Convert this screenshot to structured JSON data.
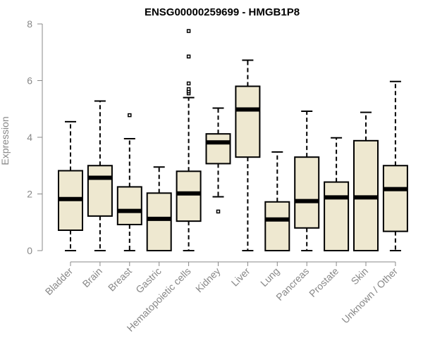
{
  "chart_data": {
    "type": "boxplot",
    "title": "ENSG00000259699 - HMGB1P8",
    "ylabel": "Expression",
    "xlabel": "",
    "ylim": [
      0,
      8
    ],
    "yticks": [
      0,
      2,
      4,
      6,
      8
    ],
    "box_fill": "#EEE8D0",
    "categories": [
      "Bladder",
      "Brain",
      "Breast",
      "Gastric",
      "Hematopoietic cells",
      "Kidney",
      "Liver",
      "Lung",
      "Pancreas",
      "Prostate",
      "Skin",
      "Unknown / Other"
    ],
    "boxes": [
      {
        "label": "Bladder",
        "min": 0,
        "q1": 0.72,
        "median": 1.82,
        "q3": 2.82,
        "max": 4.55,
        "outliers": []
      },
      {
        "label": "Brain",
        "min": 0,
        "q1": 1.22,
        "median": 2.57,
        "q3": 3.0,
        "max": 5.28,
        "outliers": []
      },
      {
        "label": "Breast",
        "min": 0,
        "q1": 0.92,
        "median": 1.4,
        "q3": 2.25,
        "max": 3.95,
        "outliers": [
          4.78
        ]
      },
      {
        "label": "Gastric",
        "min": 0,
        "q1": 0.0,
        "median": 1.12,
        "q3": 2.03,
        "max": 2.95,
        "outliers": []
      },
      {
        "label": "Hematopoietic cells",
        "min": 0,
        "q1": 1.04,
        "median": 2.02,
        "q3": 2.8,
        "max": 5.4,
        "outliers": [
          5.55,
          5.62,
          5.7,
          5.9,
          6.85,
          7.75
        ]
      },
      {
        "label": "Kidney",
        "min": 1.9,
        "q1": 3.07,
        "median": 3.82,
        "q3": 4.12,
        "max": 5.03,
        "outliers": [
          1.38
        ]
      },
      {
        "label": "Liver",
        "min": 0,
        "q1": 3.3,
        "median": 4.98,
        "q3": 5.8,
        "max": 6.72,
        "outliers": []
      },
      {
        "label": "Lung",
        "min": 0,
        "q1": 0.0,
        "median": 1.1,
        "q3": 1.72,
        "max": 3.48,
        "outliers": []
      },
      {
        "label": "Pancreas",
        "min": 0,
        "q1": 0.8,
        "median": 1.75,
        "q3": 3.3,
        "max": 4.92,
        "outliers": []
      },
      {
        "label": "Prostate",
        "min": 0,
        "q1": 0.0,
        "median": 1.88,
        "q3": 2.42,
        "max": 3.98,
        "outliers": []
      },
      {
        "label": "Skin",
        "min": 0,
        "q1": 0.0,
        "median": 1.88,
        "q3": 3.88,
        "max": 4.88,
        "outliers": []
      },
      {
        "label": "Unknown / Other",
        "min": 0,
        "q1": 0.68,
        "median": 2.17,
        "q3": 3.0,
        "max": 5.97,
        "outliers": []
      }
    ]
  }
}
